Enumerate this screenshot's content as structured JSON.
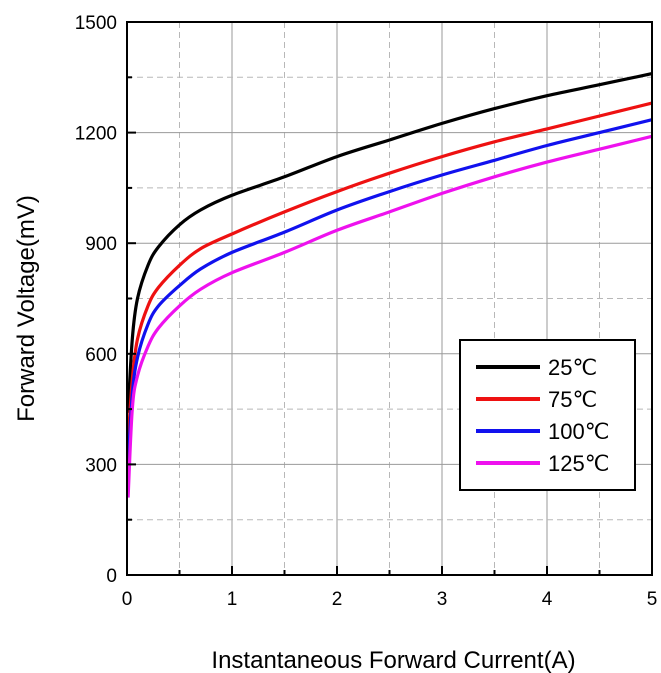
{
  "chart_data": {
    "type": "line",
    "xlabel": "Instantaneous Forward Current(A)",
    "ylabel": "Forward Voltage(mV)",
    "xlim": [
      0,
      5
    ],
    "ylim": [
      0,
      1500
    ],
    "xticks": [
      "0",
      "1",
      "2",
      "3",
      "4",
      "5"
    ],
    "yticks": [
      "0",
      "300",
      "600",
      "900",
      "1200",
      "1500"
    ],
    "x_tick_values": [
      0,
      1,
      2,
      3,
      4,
      5
    ],
    "y_tick_values": [
      0,
      300,
      600,
      900,
      1200,
      1500
    ],
    "grid": "dashed, major and minor",
    "legend_position": "lower-right",
    "series": [
      {
        "name": "25℃",
        "color": "#000000",
        "x": [
          0.01,
          0.05,
          0.1,
          0.2,
          0.3,
          0.5,
          0.7,
          1.0,
          1.5,
          2.0,
          2.5,
          3.0,
          3.5,
          4.0,
          4.5,
          5.0
        ],
        "y": [
          440,
          640,
          750,
          840,
          890,
          950,
          990,
          1030,
          1080,
          1135,
          1180,
          1225,
          1265,
          1300,
          1330,
          1360
        ]
      },
      {
        "name": "75℃",
        "color": "#ee1111",
        "x": [
          0.01,
          0.05,
          0.1,
          0.2,
          0.3,
          0.5,
          0.7,
          1.0,
          1.5,
          2.0,
          2.5,
          3.0,
          3.5,
          4.0,
          4.5,
          5.0
        ],
        "y": [
          360,
          530,
          640,
          730,
          780,
          840,
          885,
          925,
          985,
          1040,
          1090,
          1135,
          1175,
          1210,
          1245,
          1280
        ]
      },
      {
        "name": "100℃",
        "color": "#1111ee",
        "x": [
          0.01,
          0.05,
          0.1,
          0.2,
          0.3,
          0.5,
          0.7,
          1.0,
          1.5,
          2.0,
          2.5,
          3.0,
          3.5,
          4.0,
          4.5,
          5.0
        ],
        "y": [
          300,
          490,
          590,
          680,
          730,
          785,
          830,
          875,
          930,
          990,
          1040,
          1085,
          1125,
          1165,
          1200,
          1235
        ]
      },
      {
        "name": "125℃",
        "color": "#ee11ee",
        "x": [
          0.01,
          0.05,
          0.1,
          0.2,
          0.3,
          0.5,
          0.7,
          1.0,
          1.5,
          2.0,
          2.5,
          3.0,
          3.5,
          4.0,
          4.5,
          5.0
        ],
        "y": [
          210,
          450,
          540,
          620,
          670,
          730,
          775,
          820,
          875,
          935,
          985,
          1035,
          1080,
          1120,
          1155,
          1190
        ]
      }
    ]
  }
}
